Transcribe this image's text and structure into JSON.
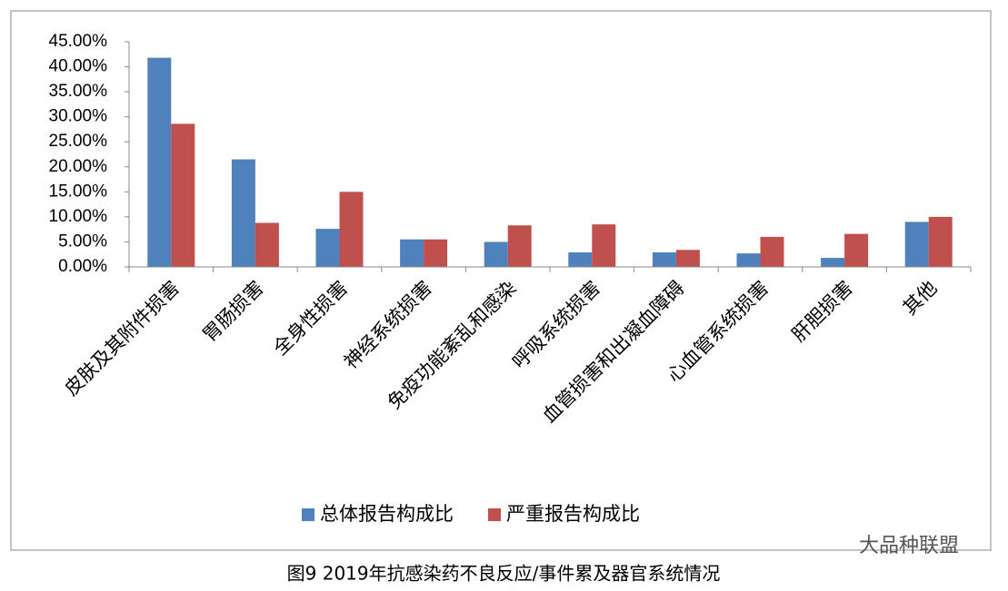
{
  "chart_data": {
    "type": "bar",
    "caption": "图9 2019年抗感染药不良反应/事件累及器官系统情况",
    "watermark": "大品种联盟",
    "categories": [
      "皮肤及其附件损害",
      "胃肠损害",
      "全身性损害",
      "神经系统损害",
      "免疫功能紊乱和感染",
      "呼吸系统损害",
      "血管损害和出凝血障碍",
      "心血管系统损害",
      "肝胆损害",
      "其他"
    ],
    "series": [
      {
        "name": "总体报告构成比",
        "color": "#4f81bd",
        "values": [
          41.8,
          21.5,
          7.6,
          5.5,
          5.0,
          2.9,
          2.9,
          2.7,
          1.8,
          9.0
        ]
      },
      {
        "name": "严重报告构成比",
        "color": "#c0504d",
        "values": [
          28.6,
          8.8,
          15.0,
          5.5,
          8.3,
          8.5,
          3.4,
          6.0,
          6.6,
          10.0
        ]
      }
    ],
    "ylim": [
      0,
      45
    ],
    "yticks": [
      {
        "value": 0,
        "label": "0.00%"
      },
      {
        "value": 5,
        "label": "5.00%"
      },
      {
        "value": 10,
        "label": "10.00%"
      },
      {
        "value": 15,
        "label": "15.00%"
      },
      {
        "value": 20,
        "label": "20.00%"
      },
      {
        "value": 25,
        "label": "25.00%"
      },
      {
        "value": 30,
        "label": "30.00%"
      },
      {
        "value": 35,
        "label": "35.00%"
      },
      {
        "value": 40,
        "label": "40.00%"
      },
      {
        "value": 45,
        "label": "45.00%"
      }
    ],
    "grid": false,
    "legend": "bottom"
  }
}
